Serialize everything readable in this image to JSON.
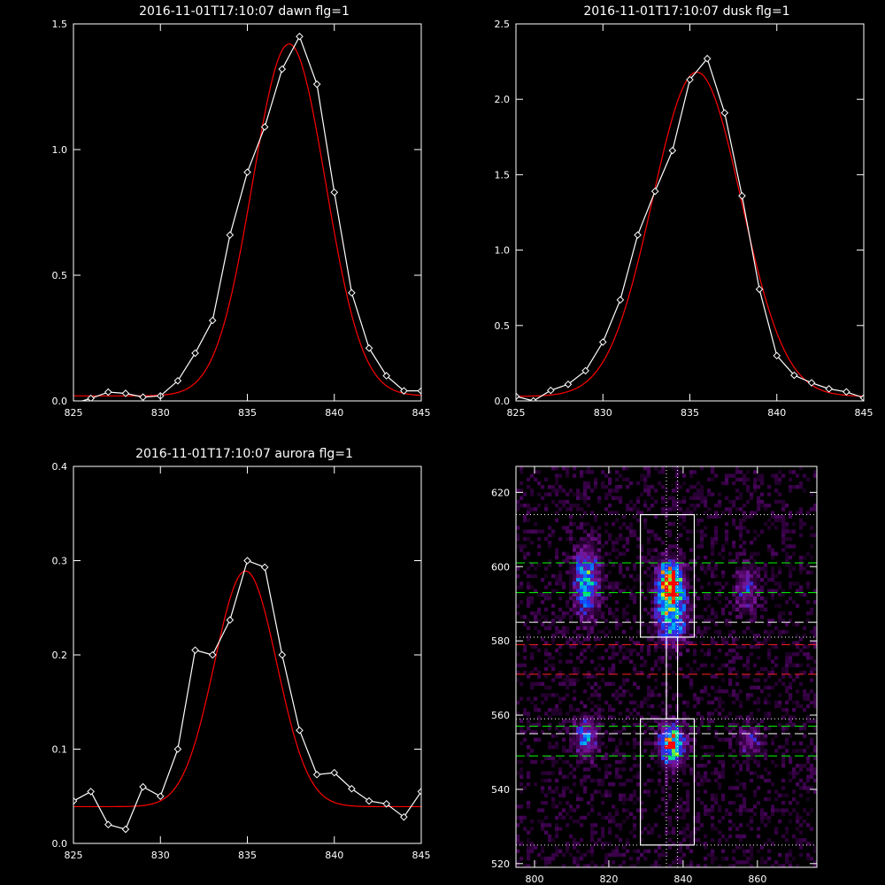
{
  "colors": {
    "background": "#000000",
    "axes": "#ffffff",
    "data_line": "#ffffff",
    "fit_line": "#ff0000",
    "dashed_green": "#00ff00",
    "dashed_red": "#ff2020",
    "dashed_white": "#ffffff"
  },
  "chart_data": [
    {
      "type": "line",
      "title": "2016-11-01T17:10:07 dawn flg=1",
      "xlim": [
        825,
        845
      ],
      "ylim": [
        0,
        1.5
      ],
      "xticks": [
        "825",
        "830",
        "835",
        "840",
        "845"
      ],
      "yticks": [
        "0.0",
        "0.5",
        "1.0",
        "1.5"
      ],
      "series": [
        {
          "marker": "diamond",
          "color": "#ffffff",
          "x": [
            825,
            826,
            827,
            828,
            829,
            830,
            831,
            832,
            833,
            834,
            835,
            836,
            837,
            838,
            839,
            840,
            841,
            842,
            843,
            844,
            845
          ],
          "y": [
            -0.01,
            0.01,
            0.035,
            0.03,
            0.015,
            0.02,
            0.08,
            0.19,
            0.32,
            0.66,
            0.91,
            1.09,
            1.32,
            1.45,
            1.26,
            0.83,
            0.43,
            0.21,
            0.1,
            0.04,
            0.04
          ]
        },
        {
          "color": "#ff0000",
          "gaussian": {
            "center": 837.4,
            "sigma": 2.1,
            "amplitude": 1.4,
            "baseline": 0.02
          }
        }
      ]
    },
    {
      "type": "line",
      "title": "2016-11-01T17:10:07 dusk flg=1",
      "xlim": [
        825,
        845
      ],
      "ylim": [
        0,
        2.5
      ],
      "xticks": [
        "825",
        "830",
        "835",
        "840",
        "845"
      ],
      "yticks": [
        "0.0",
        "0.5",
        "1.0",
        "1.5",
        "2.0",
        "2.5"
      ],
      "series": [
        {
          "marker": "diamond",
          "color": "#ffffff",
          "x": [
            825,
            826,
            827,
            828,
            829,
            830,
            831,
            832,
            833,
            834,
            835,
            836,
            837,
            838,
            839,
            840,
            841,
            842,
            843,
            844,
            845
          ],
          "y": [
            0.03,
            0.0,
            0.07,
            0.11,
            0.2,
            0.39,
            0.67,
            1.1,
            1.39,
            1.66,
            2.13,
            2.27,
            1.91,
            1.36,
            0.74,
            0.3,
            0.17,
            0.12,
            0.08,
            0.06,
            0.02
          ]
        },
        {
          "color": "#ff0000",
          "gaussian": {
            "center": 835.4,
            "sigma": 2.55,
            "amplitude": 2.15,
            "baseline": 0.03
          }
        }
      ]
    },
    {
      "type": "line",
      "title": "2016-11-01T17:10:07 aurora flg=1",
      "xlim": [
        825,
        845
      ],
      "ylim": [
        0,
        0.4
      ],
      "xticks": [
        "825",
        "830",
        "835",
        "840",
        "845"
      ],
      "yticks": [
        "0.0",
        "0.1",
        "0.2",
        "0.3",
        "0.4"
      ],
      "series": [
        {
          "marker": "diamond",
          "color": "#ffffff",
          "x": [
            825,
            826,
            827,
            828,
            829,
            830,
            831,
            832,
            833,
            834,
            835,
            836,
            837,
            838,
            839,
            840,
            841,
            842,
            843,
            844,
            845
          ],
          "y": [
            0.045,
            0.055,
            0.02,
            0.015,
            0.06,
            0.05,
            0.1,
            0.205,
            0.2,
            0.237,
            0.3,
            0.293,
            0.2,
            0.12,
            0.073,
            0.075,
            0.058,
            0.045,
            0.042,
            0.028,
            0.055
          ]
        },
        {
          "color": "#ff0000",
          "gaussian": {
            "center": 834.9,
            "sigma": 1.8,
            "amplitude": 0.25,
            "baseline": 0.039
          }
        }
      ]
    },
    {
      "type": "heatmap",
      "title": "",
      "xlim": [
        795,
        876
      ],
      "ylim": [
        519,
        627
      ],
      "xticks": [
        "800",
        "820",
        "840",
        "860"
      ],
      "yticks": [
        "520",
        "540",
        "560",
        "580",
        "600",
        "620"
      ],
      "blobs": [
        {
          "x": 814,
          "y": 596,
          "amp": 0.55,
          "sx": 2.2,
          "sy": 6
        },
        {
          "x": 836.5,
          "y": 596,
          "amp": 1.0,
          "sx": 2.2,
          "sy": 3.5
        },
        {
          "x": 837,
          "y": 587,
          "amp": 0.7,
          "sx": 2.5,
          "sy": 5
        },
        {
          "x": 857,
          "y": 594,
          "amp": 0.28,
          "sx": 2,
          "sy": 4
        },
        {
          "x": 814,
          "y": 554,
          "amp": 0.45,
          "sx": 2,
          "sy": 3.5
        },
        {
          "x": 837,
          "y": 552,
          "amp": 0.8,
          "sx": 2.2,
          "sy": 3.5
        },
        {
          "x": 858,
          "y": 553,
          "amp": 0.22,
          "sx": 2.5,
          "sy": 3
        }
      ],
      "boxes": [
        {
          "x": [
            828.5,
            843
          ],
          "y": [
            581,
            614
          ]
        },
        {
          "x": [
            828.5,
            843
          ],
          "y": [
            525,
            559
          ]
        },
        {
          "x": [
            835.5,
            838.5
          ],
          "y": [
            559,
            581
          ]
        }
      ],
      "dotted_h": [
        614,
        581,
        559,
        525
      ],
      "dotted_v": [
        835.5,
        838.5
      ],
      "dashed_lines": [
        {
          "y": 601,
          "color": "#00ff00"
        },
        {
          "y": 593,
          "color": "#00ff00"
        },
        {
          "y": 585,
          "color": "#ffffff"
        },
        {
          "y": 579,
          "color": "#ff2020"
        },
        {
          "y": 571,
          "color": "#ff2020"
        },
        {
          "y": 557,
          "color": "#00ff00"
        },
        {
          "y": 555,
          "color": "#ffffff"
        },
        {
          "y": 549,
          "color": "#00ff00"
        }
      ]
    }
  ]
}
